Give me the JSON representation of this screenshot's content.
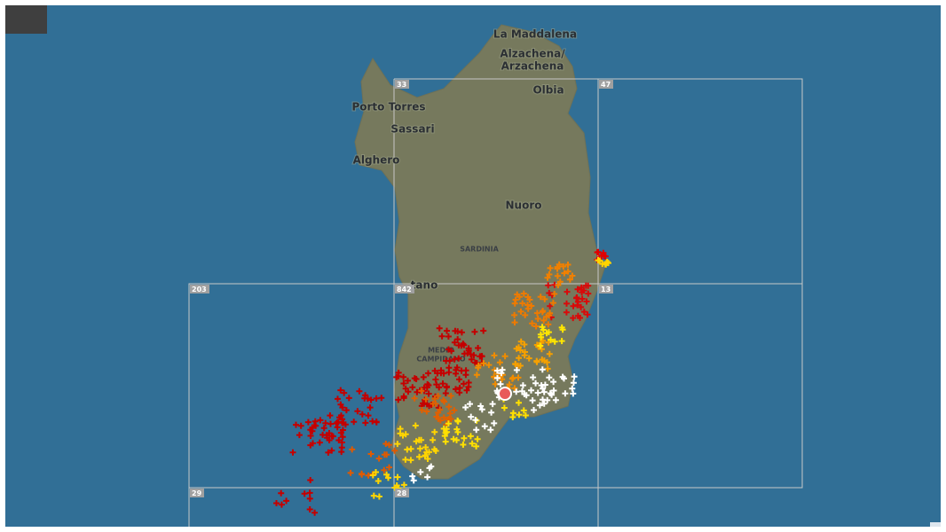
{
  "map": {
    "places": [
      {
        "name": "La Maddalena"
      },
      {
        "name": "Alzachena/"
      },
      {
        "name": "Arzachena"
      },
      {
        "name": "Olbia"
      },
      {
        "name": "Porto Torres"
      },
      {
        "name": "Sassari"
      },
      {
        "name": "Alghero"
      },
      {
        "name": "Nuoro"
      },
      {
        "name": "SARDINIA"
      },
      {
        "name": "tano"
      },
      {
        "name": "MEDIO"
      },
      {
        "name": "CAMPIDANO"
      }
    ],
    "grid_counts": [
      "33",
      "47",
      "203",
      "842",
      "13",
      "29",
      "28"
    ]
  }
}
